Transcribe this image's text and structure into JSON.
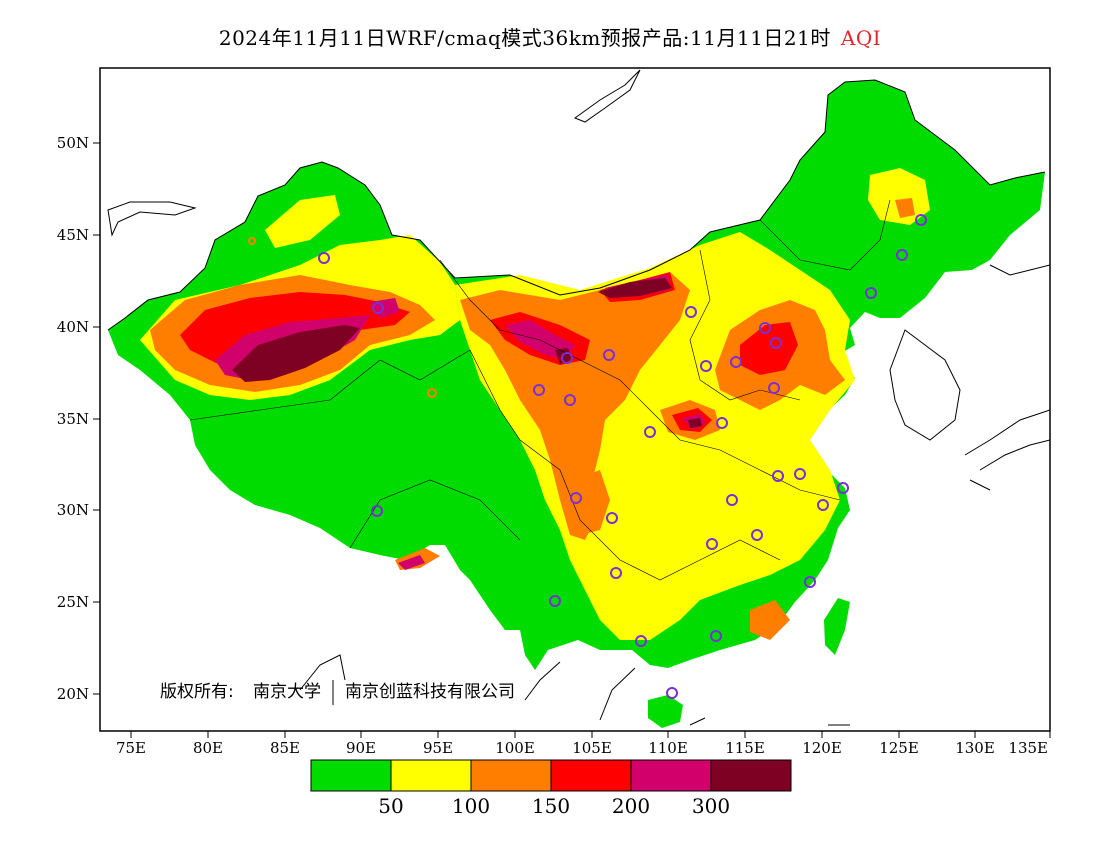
{
  "title": {
    "main": "2024年11月11日WRF/cmaq模式36km预报产品:11月11日21时",
    "variable": "AQI",
    "variable_color": "#e8252b"
  },
  "copyright": {
    "label": "版权所有:",
    "org1": "南京大学",
    "org2": "南京创蓝科技有限公司"
  },
  "axes": {
    "lon_ticks": [
      "75E",
      "80E",
      "85E",
      "90E",
      "95E",
      "100E",
      "105E",
      "110E",
      "115E",
      "120E",
      "125E",
      "130E",
      "135E"
    ],
    "lat_ticks": [
      "50N",
      "45N",
      "40N",
      "35N",
      "30N",
      "25N",
      "20N"
    ]
  },
  "colorbar": {
    "colors": [
      "#00dc00",
      "#ffff00",
      "#ff7e00",
      "#ff0000",
      "#d1006b",
      "#7e0023"
    ],
    "labels": [
      "50",
      "100",
      "150",
      "200",
      "300"
    ]
  },
  "palette": {
    "good": "#00dc00",
    "moderate": "#ffff00",
    "usg": "#ff7e00",
    "unhealthy": "#ff0000",
    "very_unhealthy": "#d1006b",
    "hazardous": "#7e0023",
    "station_circle": "#7b2fd6"
  }
}
